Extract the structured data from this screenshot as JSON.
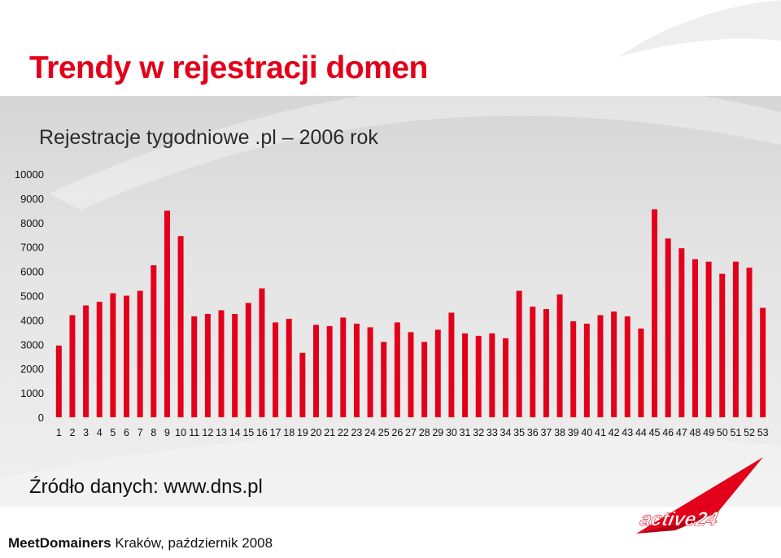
{
  "slide": {
    "title": "Trendy w rejestracji domen",
    "source": "Źródło danych: www.dns.pl",
    "footer_brand": "MeetDomainers",
    "footer_place": " Kraków, październik 2008",
    "logo_text": "active24"
  },
  "colors": {
    "title": "#e2001a",
    "bar": "#e2001a",
    "band": "#e0e0e0"
  },
  "chart_data": {
    "type": "bar",
    "title": "Rejestracje tygodniowe .pl – 2006 rok",
    "xlabel": "",
    "ylabel": "",
    "ylim": [
      0,
      10000
    ],
    "yticks": [
      0,
      1000,
      2000,
      3000,
      4000,
      5000,
      6000,
      7000,
      8000,
      9000,
      10000
    ],
    "grid": false,
    "legend": "none",
    "categories": [
      "1",
      "2",
      "3",
      "4",
      "5",
      "6",
      "7",
      "8",
      "9",
      "10",
      "11",
      "12",
      "13",
      "14",
      "15",
      "16",
      "17",
      "18",
      "19",
      "20",
      "21",
      "22",
      "23",
      "24",
      "25",
      "26",
      "27",
      "28",
      "29",
      "30",
      "31",
      "32",
      "33",
      "34",
      "35",
      "36",
      "37",
      "38",
      "39",
      "40",
      "41",
      "42",
      "43",
      "44",
      "45",
      "46",
      "47",
      "48",
      "49",
      "50",
      "51",
      "52",
      "53"
    ],
    "values": [
      2950,
      4200,
      4600,
      4750,
      5100,
      5000,
      5200,
      6250,
      8500,
      7450,
      4150,
      4250,
      4400,
      4250,
      4700,
      5300,
      3900,
      4050,
      2650,
      3800,
      3750,
      4100,
      3850,
      3700,
      3100,
      3900,
      3500,
      3100,
      3600,
      4300,
      3450,
      3350,
      3450,
      3250,
      5200,
      4550,
      4450,
      5050,
      3950,
      3850,
      4200,
      4350,
      4150,
      3650,
      8550,
      7350,
      6950,
      6500,
      6400,
      5900,
      6400,
      6150,
      4500
    ]
  }
}
